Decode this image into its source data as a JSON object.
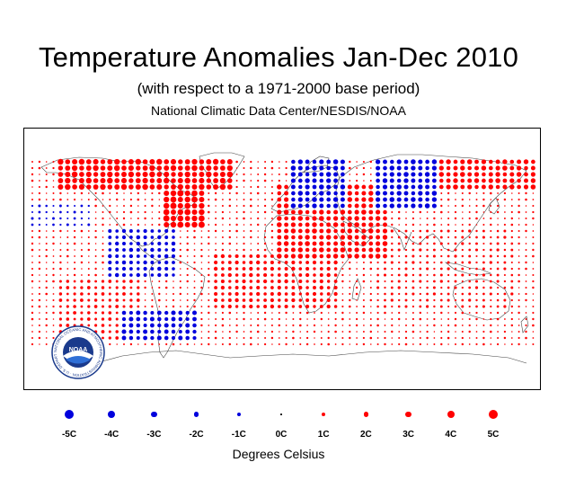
{
  "map": {
    "title": "Temperature Anomalies Jan-Dec 2010",
    "subtitle": "(with respect to a 1971-2000 base period)",
    "source": "National Climatic Data Center/NESDIS/NOAA",
    "units_label": "Degrees Celsius",
    "logo_text": "NOAA",
    "logo_ring_text": "NATIONAL OCEANIC AND ATMOSPHERIC ADMINISTRATION · U.S. DEPARTMENT OF COMMERCE"
  },
  "legend": [
    {
      "label": "-5C",
      "value": -5
    },
    {
      "label": "-4C",
      "value": -4
    },
    {
      "label": "-3C",
      "value": -3
    },
    {
      "label": "-2C",
      "value": -2
    },
    {
      "label": "-1C",
      "value": -1
    },
    {
      "label": "0C",
      "value": 0
    },
    {
      "label": "1C",
      "value": 1
    },
    {
      "label": "2C",
      "value": 2
    },
    {
      "label": "3C",
      "value": 3
    },
    {
      "label": "4C",
      "value": 4
    },
    {
      "label": "5C",
      "value": 5
    }
  ],
  "colors": {
    "warm": "#ff0000",
    "cold": "#0000dd",
    "coast": "#444444",
    "frame": "#000000",
    "logo_blue": "#1a3a8c"
  }
}
